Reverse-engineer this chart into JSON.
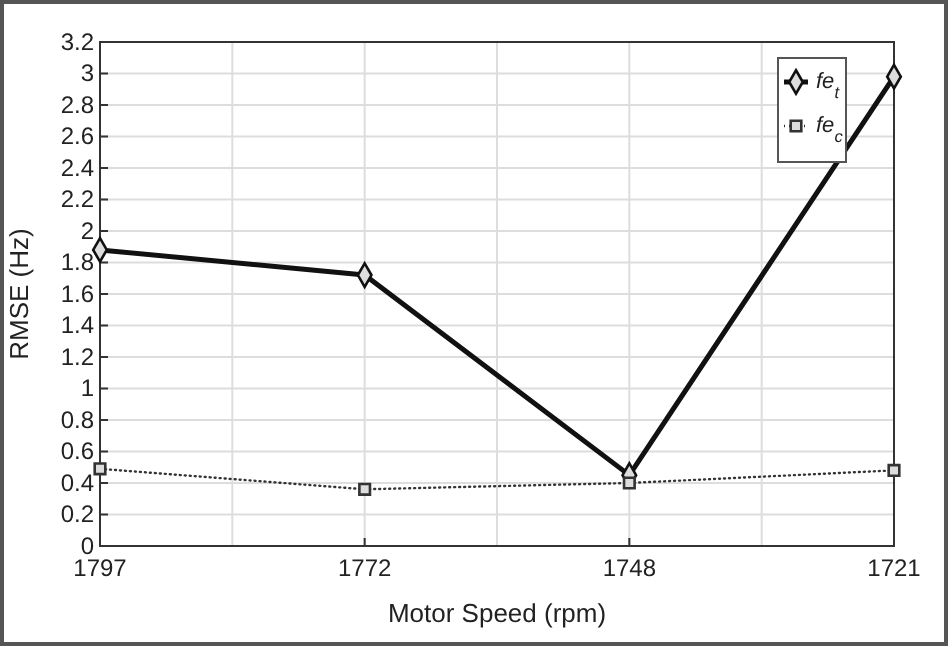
{
  "chart_data": {
    "type": "line",
    "xlabel": "Motor Speed (rpm)",
    "ylabel": "RMSE (Hz)",
    "categories": [
      "1797",
      "1772",
      "1748",
      "1721"
    ],
    "series": [
      {
        "name": "fe$_{t}$",
        "color": "#111111",
        "values": [
          1.88,
          1.72,
          0.45,
          2.98
        ],
        "marker": "diamond",
        "line_style": "solid"
      },
      {
        "name": "fe$_{c}$",
        "color": "#333333",
        "values": [
          0.49,
          0.36,
          0.4,
          0.48
        ],
        "marker": "square",
        "line_style": "dotted"
      }
    ],
    "ylim": [
      0,
      3.2
    ],
    "yticks": [
      0,
      0.2,
      0.4,
      0.6,
      0.8,
      1,
      1.2,
      1.4,
      1.6,
      1.8,
      2,
      2.2,
      2.4,
      2.6,
      2.8,
      3,
      3.2
    ],
    "grid": true,
    "legend": "top right"
  }
}
